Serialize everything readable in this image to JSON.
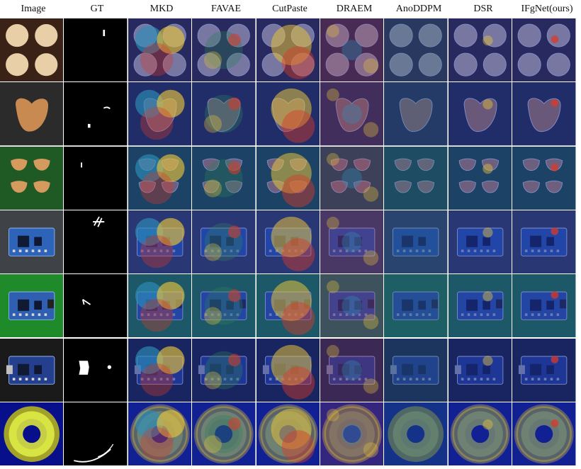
{
  "columns": [
    {
      "key": "image",
      "label": "Image"
    },
    {
      "key": "gt",
      "label": "GT"
    },
    {
      "key": "mkd",
      "label": "MKD"
    },
    {
      "key": "favae",
      "label": "FAVAE"
    },
    {
      "key": "cutpaste",
      "label": "CutPaste"
    },
    {
      "key": "draem",
      "label": "DRAEM"
    },
    {
      "key": "anoddpm",
      "label": "AnoDDPM"
    },
    {
      "key": "dsr",
      "label": "DSR"
    },
    {
      "key": "ifgnet",
      "label": "IFgNet(ours)"
    }
  ],
  "rows": [
    {
      "object": "capsule-tablets",
      "bg": "#3a2316",
      "obj": "#e8cfa8"
    },
    {
      "object": "bean",
      "bg": "#2b2b2b",
      "obj": "#c98a52"
    },
    {
      "object": "pepper-slices",
      "bg": "#1f5a24",
      "obj": "#d49a5e"
    },
    {
      "object": "circuit-board",
      "bg": "#3f4247",
      "obj": "#2d63b8"
    },
    {
      "object": "sensor-board",
      "bg": "#1f8a2a",
      "obj": "#2f5fb0"
    },
    {
      "object": "charger-board",
      "bg": "#1a1a1a",
      "obj": "#253f8f"
    },
    {
      "object": "ring-disc",
      "bg": "#07108a",
      "obj": "#d8e442"
    }
  ],
  "heatmap_colors": {
    "cold": "#1a2f9a",
    "cool": "#2d8fb8",
    "warm": "#e6c33d",
    "hot": "#d93a28",
    "green_tint": "#2f7d5d"
  }
}
